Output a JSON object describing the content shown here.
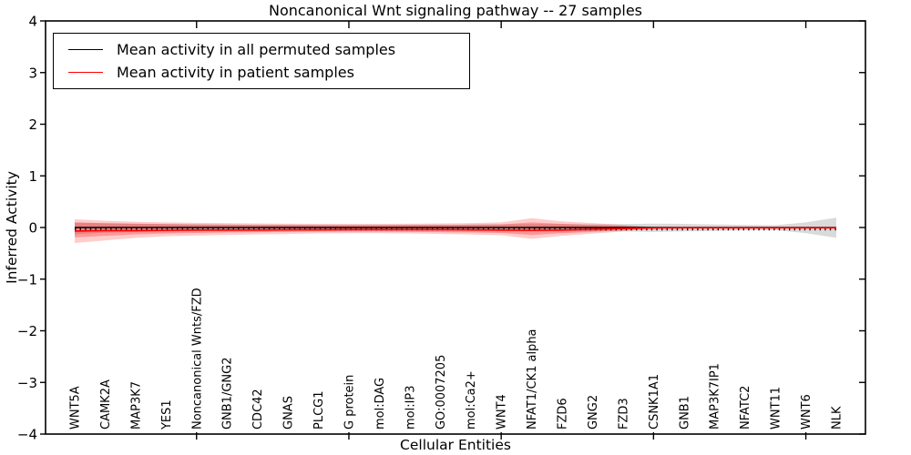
{
  "chart_data": {
    "type": "line",
    "title": "Noncanonical Wnt signaling pathway -- 27 samples",
    "xlabel": "Cellular Entities",
    "ylabel": "Inferred Activity",
    "ylim": [
      -4,
      4
    ],
    "yticks": [
      4,
      3,
      2,
      1,
      0,
      -1,
      -2,
      -3,
      -4
    ],
    "ytick_labels": [
      "4",
      "3",
      "2",
      "1",
      "0",
      "−1",
      "−2",
      "−3",
      "−4"
    ],
    "grid": false,
    "legend_position": "upper left",
    "categories": [
      "WNT5A",
      "CAMK2A",
      "MAP3K7",
      "YES1",
      "Noncanonical Wnts/FZD",
      "GNB1/GNG2",
      "CDC42",
      "GNAS",
      "PLCG1",
      "G protein",
      "mol:DAG",
      "mol:IP3",
      "GO:0007205",
      "mol:Ca2+",
      "WNT4",
      "NFAT1/CK1 alpha",
      "FZD6",
      "GNG2",
      "FZD3",
      "CSNK1A1",
      "GNB1",
      "MAP3K7IP1",
      "NFATC2",
      "WNT11",
      "WNT6",
      "NLK"
    ],
    "x_major_tick_indices": [
      4,
      9,
      14,
      19,
      24
    ],
    "series": [
      {
        "name": "Mean activity in all permuted samples",
        "color": "#000000",
        "values": [
          0,
          0,
          0,
          0,
          0,
          0,
          0,
          0,
          0,
          0,
          0,
          0,
          0,
          0,
          0,
          0,
          0,
          0,
          0,
          0,
          0,
          0,
          0,
          0,
          0,
          0
        ]
      },
      {
        "name": "Mean activity in patient samples",
        "color": "#ff0000",
        "values": [
          -0.07,
          -0.06,
          -0.06,
          -0.055,
          -0.05,
          -0.05,
          -0.05,
          -0.045,
          -0.045,
          -0.04,
          -0.04,
          -0.04,
          -0.04,
          -0.045,
          -0.05,
          -0.055,
          -0.05,
          -0.035,
          -0.02,
          -0.01,
          -0.006,
          -0.006,
          -0.006,
          -0.006,
          -0.006,
          -0.006
        ]
      }
    ],
    "bands": [
      {
        "name": "permuted-samples-range",
        "color": "#787878",
        "opacity": 0.27,
        "start_index": 0,
        "top": [
          0.1,
          0.08,
          0.07,
          0.065,
          0.06,
          0.055,
          0.05,
          0.05,
          0.05,
          0.05,
          0.05,
          0.05,
          0.05,
          0.055,
          0.06,
          0.065,
          0.065,
          0.06,
          0.065,
          0.075,
          0.07,
          0.06,
          0.05,
          0.045,
          0.1,
          0.19
        ],
        "bottom": [
          -0.13,
          -0.1,
          -0.085,
          -0.075,
          -0.07,
          -0.065,
          -0.06,
          -0.06,
          -0.06,
          -0.06,
          -0.06,
          -0.06,
          -0.06,
          -0.065,
          -0.07,
          -0.075,
          -0.075,
          -0.07,
          -0.075,
          -0.085,
          -0.075,
          -0.065,
          -0.055,
          -0.05,
          -0.11,
          -0.2
        ]
      },
      {
        "name": "patient-samples-range-outer",
        "color": "#ff0000",
        "opacity": 0.2,
        "start_index": 0,
        "top": [
          0.16,
          0.13,
          0.11,
          0.1,
          0.09,
          0.085,
          0.08,
          0.075,
          0.07,
          0.07,
          0.07,
          0.075,
          0.08,
          0.085,
          0.1,
          0.18,
          0.12,
          0.085,
          0.05,
          0.008
        ],
        "bottom": [
          -0.3,
          -0.25,
          -0.2,
          -0.17,
          -0.155,
          -0.145,
          -0.135,
          -0.125,
          -0.115,
          -0.11,
          -0.11,
          -0.115,
          -0.125,
          -0.135,
          -0.15,
          -0.22,
          -0.16,
          -0.12,
          -0.075,
          -0.015
        ]
      },
      {
        "name": "patient-samples-range-inner",
        "color": "#ff0000",
        "opacity": 0.26,
        "start_index": 0,
        "top": [
          0.095,
          0.085,
          0.075,
          0.065,
          0.06,
          0.055,
          0.05,
          0.05,
          0.045,
          0.045,
          0.045,
          0.05,
          0.05,
          0.055,
          0.06,
          0.1,
          0.07,
          0.05,
          0.03,
          0.004
        ],
        "bottom": [
          -0.19,
          -0.16,
          -0.135,
          -0.115,
          -0.105,
          -0.095,
          -0.09,
          -0.085,
          -0.08,
          -0.08,
          -0.08,
          -0.085,
          -0.09,
          -0.095,
          -0.105,
          -0.145,
          -0.11,
          -0.085,
          -0.05,
          -0.008
        ]
      }
    ],
    "marker_dashes_color": "#151515",
    "axis_color": "#000000"
  }
}
